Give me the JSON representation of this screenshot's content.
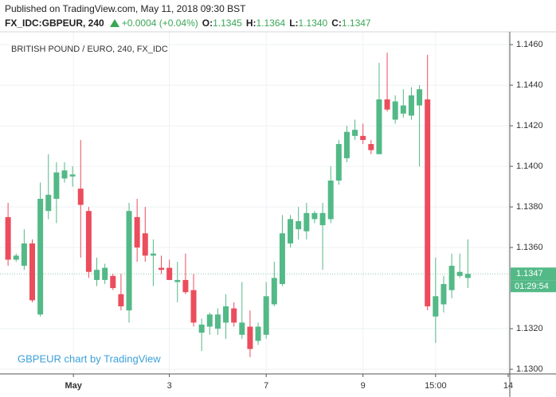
{
  "header": {
    "published": "Published on TradingView.com, May 11, 2018 09:30 BST",
    "symbol": "FX_IDC:GBPEUR, 240",
    "change": "+0.0004 (+0.04%)",
    "ohlc": [
      {
        "key": "O:",
        "value": "1.1345"
      },
      {
        "key": "H:",
        "value": "1.1364"
      },
      {
        "key": "L:",
        "value": "1.1340"
      },
      {
        "key": "C:",
        "value": "1.1347"
      }
    ]
  },
  "chart_data": {
    "type": "candlestick",
    "title": "BRITISH POUND / EURO, 240, FX_IDC",
    "watermark": "GBPEUR chart by TradingView",
    "up_color": "#53b987",
    "down_color": "#eb4d5c",
    "grid": true,
    "open": [
      1.1375,
      1.1354,
      1.1351,
      1.1362,
      1.1327,
      1.1378,
      1.1384,
      1.1394,
      1.1395,
      1.1389,
      1.1378,
      1.1344,
      1.1344,
      1.1346,
      1.1337,
      1.1329,
      1.1375,
      1.1367,
      1.1356,
      1.135,
      1.135,
      1.1343,
      1.1344,
      1.1339,
      1.1318,
      1.1321,
      1.132,
      1.1323,
      1.133,
      1.1317,
      1.1321,
      1.1314,
      1.1317,
      1.1332,
      1.1342,
      1.1362,
      1.1369,
      1.1368,
      1.1374,
      1.1371,
      1.1374,
      1.1393,
      1.1404,
      1.1415,
      1.1415,
      1.1411,
      1.1406,
      1.1433,
      1.1423,
      1.1426,
      1.1425,
      1.143,
      1.1433,
      1.1326,
      1.1332,
      1.1339,
      1.1346,
      1.1345
    ],
    "high": [
      1.1382,
      1.1357,
      1.1369,
      1.1364,
      1.1392,
      1.1406,
      1.1402,
      1.1402,
      1.14,
      1.1413,
      1.138,
      1.1355,
      1.1352,
      1.1347,
      1.1347,
      1.1382,
      1.1384,
      1.138,
      1.1364,
      1.1356,
      1.1354,
      1.1353,
      1.1357,
      1.1347,
      1.1325,
      1.1328,
      1.133,
      1.1337,
      1.1333,
      1.1343,
      1.1329,
      1.1323,
      1.1343,
      1.1353,
      1.1376,
      1.1376,
      1.138,
      1.1382,
      1.1378,
      1.1382,
      1.14,
      1.1413,
      1.142,
      1.1423,
      1.1421,
      1.1413,
      1.1451,
      1.1456,
      1.1435,
      1.1438,
      1.1439,
      1.144,
      1.1455,
      1.1355,
      1.1346,
      1.1357,
      1.1357,
      1.1364
    ],
    "low": [
      1.1351,
      1.1353,
      1.1349,
      1.1333,
      1.1326,
      1.1374,
      1.1372,
      1.1392,
      1.139,
      1.1355,
      1.1345,
      1.1341,
      1.1342,
      1.1339,
      1.1329,
      1.1323,
      1.1353,
      1.1353,
      1.1341,
      1.1347,
      1.1344,
      1.1333,
      1.1337,
      1.1321,
      1.1309,
      1.1317,
      1.1317,
      1.1315,
      1.1321,
      1.1315,
      1.1306,
      1.1312,
      1.1315,
      1.1331,
      1.1341,
      1.136,
      1.1364,
      1.1364,
      1.1372,
      1.1349,
      1.1372,
      1.1391,
      1.1402,
      1.1413,
      1.1411,
      1.1406,
      1.1406,
      1.1427,
      1.1421,
      1.1424,
      1.1423,
      1.14,
      1.1329,
      1.1313,
      1.1328,
      1.1335,
      1.1345,
      1.134
    ],
    "close": [
      1.1354,
      1.1356,
      1.1362,
      1.1334,
      1.1384,
      1.1386,
      1.1397,
      1.1398,
      1.1396,
      1.1381,
      1.1348,
      1.1349,
      1.135,
      1.134,
      1.1331,
      1.1378,
      1.136,
      1.1356,
      1.1357,
      1.1349,
      1.1344,
      1.1344,
      1.1338,
      1.1323,
      1.1322,
      1.1327,
      1.1327,
      1.1331,
      1.1323,
      1.1323,
      1.131,
      1.1321,
      1.1336,
      1.1345,
      1.1367,
      1.1374,
      1.1373,
      1.1377,
      1.1377,
      1.1377,
      1.1393,
      1.1411,
      1.1417,
      1.1418,
      1.1413,
      1.1408,
      1.1433,
      1.1428,
      1.1432,
      1.143,
      1.1435,
      1.1438,
      1.1331,
      1.1336,
      1.1342,
      1.1351,
      1.1348,
      1.1347
    ],
    "xlim": [
      -1,
      62.2
    ],
    "xticks": [
      {
        "value": 8.1,
        "label": "May"
      },
      {
        "value": 20,
        "label": "3"
      },
      {
        "value": 32,
        "label": "7"
      },
      {
        "value": 44,
        "label": "9"
      },
      {
        "value": 53,
        "label": "15:00"
      },
      {
        "value": 62,
        "label": "14"
      }
    ],
    "ylim": [
      1.12977,
      1.14663
    ],
    "yticks": [
      {
        "value": 1.146,
        "label": "1.1460"
      },
      {
        "value": 1.144,
        "label": "1.1440"
      },
      {
        "value": 1.142,
        "label": "1.1420"
      },
      {
        "value": 1.14,
        "label": "1.1400"
      },
      {
        "value": 1.138,
        "label": "1.1380"
      },
      {
        "value": 1.136,
        "label": "1.1360"
      },
      {
        "value": 1.132,
        "label": "1.1320"
      },
      {
        "value": 1.13,
        "label": "1.1300"
      }
    ],
    "last_price": 1.1347,
    "countdown": "01:29:54"
  }
}
